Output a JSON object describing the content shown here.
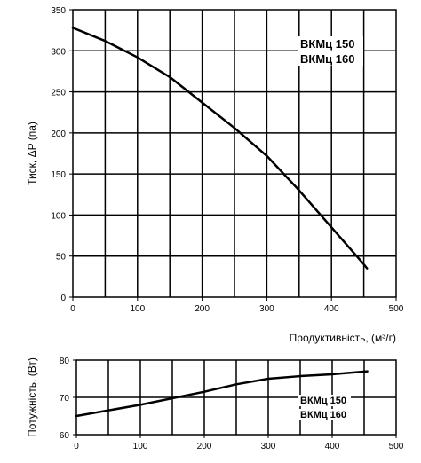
{
  "chart_data": [
    {
      "type": "line",
      "ylabel": "Тиск, ΔP (па)",
      "xlabel": "Продуктивність, (м³/г)",
      "xlim": [
        0,
        500
      ],
      "ylim": [
        0,
        350
      ],
      "x_ticks": [
        0,
        100,
        200,
        300,
        400,
        500
      ],
      "y_ticks": [
        0,
        50,
        100,
        150,
        200,
        250,
        300,
        350
      ],
      "grid": true,
      "series_labels": [
        "ВКМц 150",
        "ВКМц 160"
      ],
      "series": [
        {
          "x": [
            0,
            50,
            100,
            150,
            200,
            250,
            300,
            350,
            400,
            450,
            455
          ],
          "values": [
            328,
            312,
            292,
            268,
            237,
            206,
            172,
            130,
            85,
            40,
            35
          ]
        }
      ]
    },
    {
      "type": "line",
      "ylabel": "Потужність, (Вт)",
      "xlim": [
        0,
        500
      ],
      "ylim": [
        60,
        80
      ],
      "x_ticks": [
        0,
        100,
        200,
        300,
        400,
        500
      ],
      "y_ticks": [
        60,
        70,
        80
      ],
      "grid": true,
      "series_labels": [
        "ВКМц 150",
        "ВКМц 160"
      ],
      "series": [
        {
          "x": [
            0,
            100,
            200,
            250,
            300,
            350,
            400,
            455
          ],
          "values": [
            65,
            68,
            71.5,
            73.5,
            75,
            75.7,
            76.2,
            77
          ]
        }
      ]
    }
  ]
}
